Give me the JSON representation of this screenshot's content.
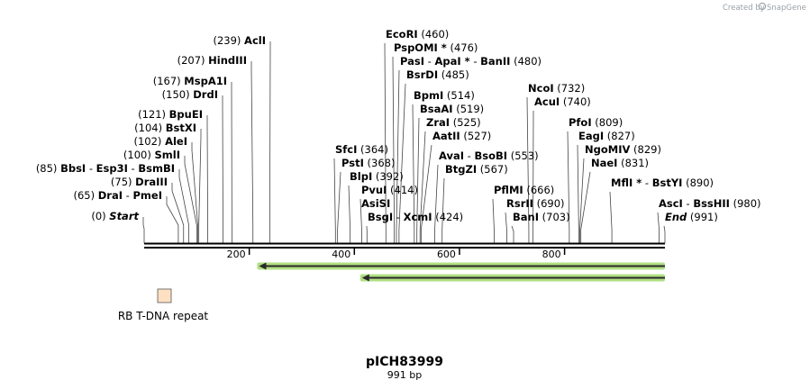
{
  "credit": {
    "text": "Created by",
    "brand": "SnapGene"
  },
  "map": {
    "title": "pICH83999",
    "length_label": "991 bp",
    "length": 991,
    "ruler_ticks": [
      "200",
      "400",
      "600",
      "800"
    ],
    "ruler_values": [
      200,
      400,
      600,
      800
    ]
  },
  "feature": {
    "label": "RB T-DNA repeat",
    "color": "#fde0c2"
  },
  "arrows": [
    {
      "start": 210,
      "end": 991,
      "color": "#8fd14f"
    },
    {
      "start": 406,
      "end": 991,
      "color": "#8fd14f"
    }
  ],
  "sites_left": [
    {
      "line": [
        {
          "name": "AclI"
        }
      ],
      "pos": "(239)",
      "site": 239
    },
    {
      "line": [
        {
          "name": "HindIII"
        }
      ],
      "pos": "(207)",
      "site": 207
    },
    {
      "line": [
        {
          "name": "MspA1I"
        }
      ],
      "pos": "(167)",
      "site": 167
    },
    {
      "line": [
        {
          "name": "DrdI"
        }
      ],
      "pos": "(150)",
      "site": 150
    },
    {
      "line": [
        {
          "name": "BpuEI"
        }
      ],
      "pos": "(121)",
      "site": 121
    },
    {
      "line": [
        {
          "name": "BstXI"
        }
      ],
      "pos": "(104)",
      "site": 104
    },
    {
      "line": [
        {
          "name": "AleI"
        }
      ],
      "pos": "(102)",
      "site": 102
    },
    {
      "line": [
        {
          "name": "SmlI"
        }
      ],
      "pos": "(100)",
      "site": 100
    },
    {
      "line": [
        {
          "name": "BbsI"
        },
        {
          "name": "Esp3I"
        },
        {
          "name": "BsmBI"
        }
      ],
      "pos": "(85)",
      "site": 85
    },
    {
      "line": [
        {
          "name": "DraIII"
        }
      ],
      "pos": "(75)",
      "site": 75
    },
    {
      "line": [
        {
          "name": "DraI"
        },
        {
          "name": "PmeI"
        }
      ],
      "pos": "(65)",
      "site": 65
    },
    {
      "line": [
        {
          "name": "Start"
        }
      ],
      "pos": "(0)",
      "site": 0,
      "italic": true
    }
  ],
  "sites_right": [
    {
      "line": [
        {
          "name": "EcoRI"
        }
      ],
      "pos": "(460)",
      "site": 460
    },
    {
      "line": [
        {
          "name": "PspOMI *"
        }
      ],
      "pos": "(476)",
      "site": 476
    },
    {
      "line": [
        {
          "name": "PasI"
        },
        {
          "name": "ApaI *"
        },
        {
          "name": "BanII"
        }
      ],
      "pos": "(480)",
      "site": 480
    },
    {
      "line": [
        {
          "name": "BsrDI"
        }
      ],
      "pos": "(485)",
      "site": 485
    },
    {
      "line": [
        {
          "name": "BpmI"
        }
      ],
      "pos": "(514)",
      "site": 514
    },
    {
      "line": [
        {
          "name": "BsaAI"
        }
      ],
      "pos": "(519)",
      "site": 519
    },
    {
      "line": [
        {
          "name": "ZraI"
        }
      ],
      "pos": "(525)",
      "site": 525
    },
    {
      "line": [
        {
          "name": "AatII"
        }
      ],
      "pos": "(527)",
      "site": 527
    },
    {
      "line": [
        {
          "name": "AvaI"
        },
        {
          "name": "BsoBI"
        }
      ],
      "pos": "(553)",
      "site": 553
    },
    {
      "line": [
        {
          "name": "BtgZI"
        }
      ],
      "pos": "(567)",
      "site": 567
    },
    {
      "line": [
        {
          "name": "SfcI"
        }
      ],
      "pos": "(364)",
      "site": 364
    },
    {
      "line": [
        {
          "name": "PstI"
        }
      ],
      "pos": "(368)",
      "site": 368
    },
    {
      "line": [
        {
          "name": "BlpI"
        }
      ],
      "pos": "(392)",
      "site": 392
    },
    {
      "line": [
        {
          "name": "PvuI"
        }
      ],
      "pos": "(414)",
      "site": 414
    },
    {
      "line": [
        {
          "name": "AsiSI"
        }
      ],
      "pos": "",
      "site": 414
    },
    {
      "line": [
        {
          "name": "BsgI"
        },
        {
          "name": "XcmI"
        }
      ],
      "pos": "(424)",
      "site": 424
    },
    {
      "line": [
        {
          "name": "NcoI"
        }
      ],
      "pos": "(732)",
      "site": 732
    },
    {
      "line": [
        {
          "name": "AcuI"
        }
      ],
      "pos": "(740)",
      "site": 740
    },
    {
      "line": [
        {
          "name": "PfoI"
        }
      ],
      "pos": "(809)",
      "site": 809
    },
    {
      "line": [
        {
          "name": "EagI"
        }
      ],
      "pos": "(827)",
      "site": 827
    },
    {
      "line": [
        {
          "name": "NgoMIV"
        }
      ],
      "pos": "(829)",
      "site": 829
    },
    {
      "line": [
        {
          "name": "NaeI"
        }
      ],
      "pos": "(831)",
      "site": 831
    },
    {
      "line": [
        {
          "name": "PflMI"
        }
      ],
      "pos": "(666)",
      "site": 666
    },
    {
      "line": [
        {
          "name": "RsrII"
        }
      ],
      "pos": "(690)",
      "site": 690
    },
    {
      "line": [
        {
          "name": "BanI"
        }
      ],
      "pos": "(703)",
      "site": 703
    },
    {
      "line": [
        {
          "name": "MflI *"
        },
        {
          "name": "BstYI"
        }
      ],
      "pos": "(890)",
      "site": 890
    },
    {
      "line": [
        {
          "name": "AscI"
        },
        {
          "name": "BssHII"
        }
      ],
      "pos": "(980)",
      "site": 980
    },
    {
      "line": [
        {
          "name": "End"
        }
      ],
      "pos": "(991)",
      "site": 991,
      "italic": true
    }
  ]
}
